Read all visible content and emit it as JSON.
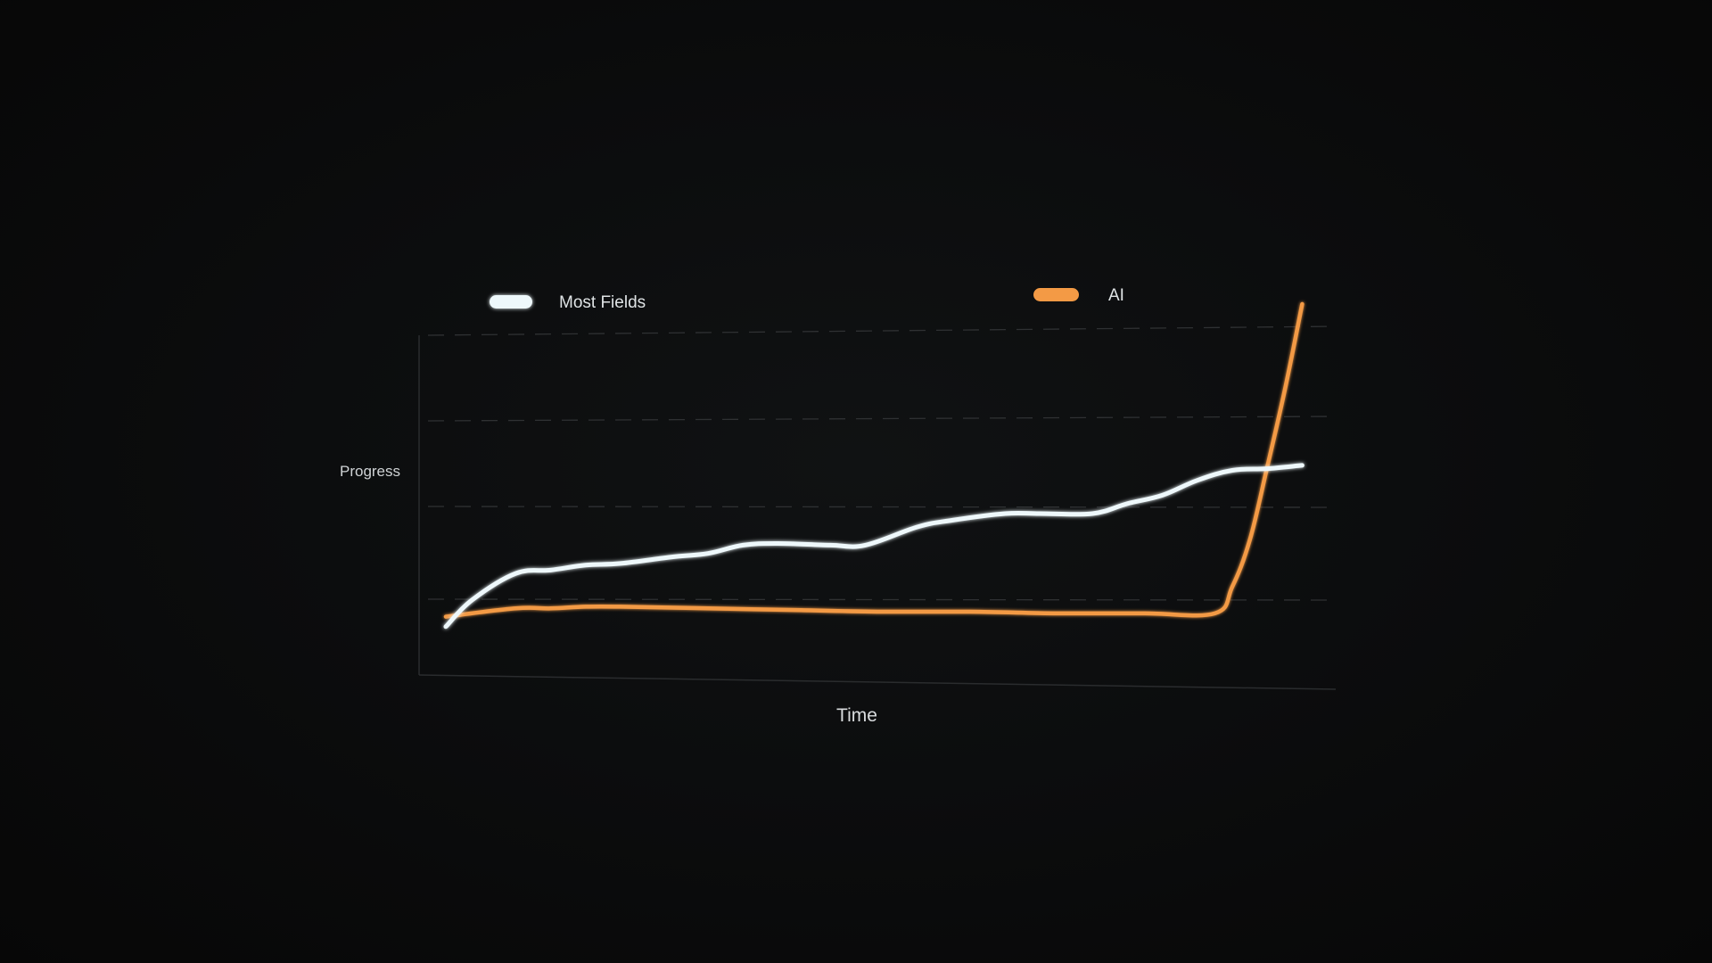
{
  "chart_data": {
    "type": "line",
    "title": "",
    "xlabel": "Time",
    "ylabel": "Progress",
    "x_ticks": [],
    "y_ticks": [],
    "xlim": [
      0,
      100
    ],
    "ylim": [
      0,
      100
    ],
    "grid": true,
    "legend_placement": "top",
    "series": [
      {
        "name": "Most Fields",
        "color": "#eef8fb",
        "x": [
          0,
          3,
          8,
          12,
          16,
          20,
          26,
          30,
          34,
          38,
          44,
          48,
          54,
          58,
          64,
          68,
          74,
          78,
          82,
          86,
          90,
          94,
          98
        ],
        "y": [
          14,
          22,
          30,
          31,
          32.5,
          33,
          35,
          36,
          38.5,
          39,
          38.5,
          38.5,
          44,
          46,
          48,
          48,
          48,
          51,
          53.5,
          58,
          61,
          61.5,
          62.5
        ]
      },
      {
        "name": "AI",
        "color": "#f39a45",
        "x": [
          0,
          8,
          12,
          16,
          20,
          30,
          40,
          50,
          60,
          70,
          80,
          88,
          90,
          92,
          94,
          96,
          98
        ],
        "y": [
          17,
          19.5,
          19.5,
          20,
          20,
          19.5,
          19,
          18.5,
          18.5,
          18,
          18,
          18,
          26,
          40,
          62,
          85,
          111
        ]
      }
    ]
  }
}
